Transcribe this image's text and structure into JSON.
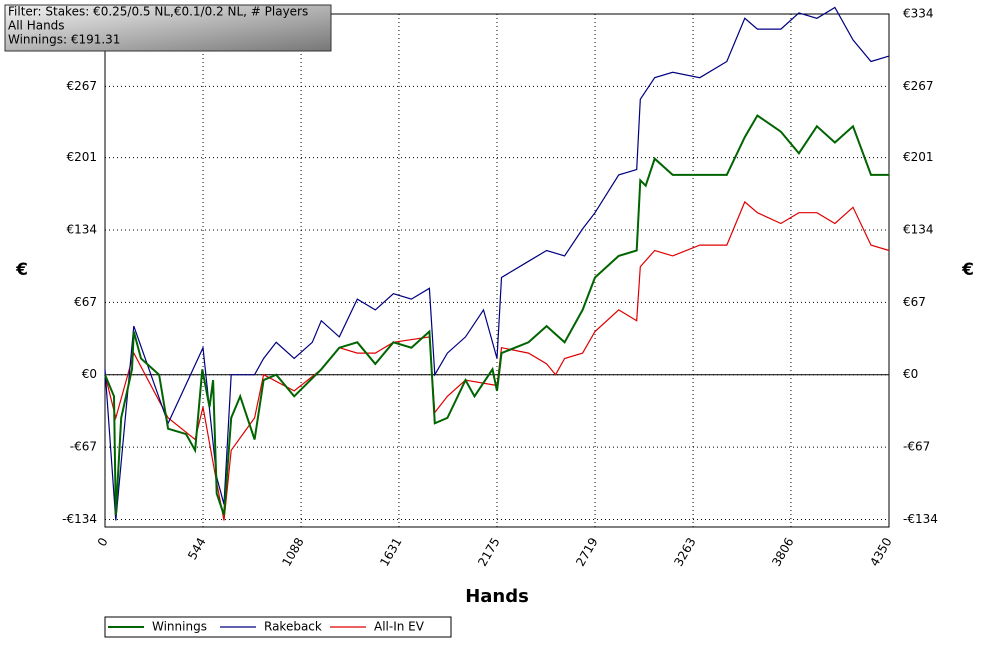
{
  "chart_data": {
    "type": "line",
    "filter_lines": [
      "Filter: Stakes: €0.25/0.5 NL,€0.1/0.2 NL, # Players",
      "All Hands",
      "Winnings: €191.31"
    ],
    "x_label": "Hands",
    "y_label": "€",
    "xlim": [
      0,
      4350
    ],
    "xticks": [
      0,
      544,
      1088,
      1631,
      2175,
      2719,
      3263,
      3806,
      4350
    ],
    "ylim": [
      -141,
      334
    ],
    "yticks": [
      {
        "value": -134,
        "label": "-€134"
      },
      {
        "value": -67,
        "label": "-€67"
      },
      {
        "value": 0,
        "label": "€0"
      },
      {
        "value": 67,
        "label": "€67"
      },
      {
        "value": 134,
        "label": "€134"
      },
      {
        "value": 201,
        "label": "€201"
      },
      {
        "value": 267,
        "label": "€267"
      },
      {
        "value": 334,
        "label": "€334"
      }
    ],
    "grid": true,
    "legend": "bottom",
    "series": [
      {
        "name": "Winnings",
        "color": "#006400",
        "x": [
          0,
          50,
          60,
          90,
          150,
          160,
          200,
          300,
          350,
          450,
          500,
          540,
          580,
          600,
          620,
          660,
          700,
          750,
          830,
          880,
          950,
          1050,
          1200,
          1300,
          1400,
          1500,
          1600,
          1700,
          1800,
          1830,
          1900,
          2000,
          2050,
          2150,
          2175,
          2200,
          2350,
          2450,
          2550,
          2650,
          2719,
          2850,
          2950,
          2970,
          3000,
          3050,
          3150,
          3300,
          3450,
          3550,
          3620,
          3750,
          3850,
          3950,
          4050,
          4150,
          4250,
          4350
        ],
        "values": [
          0,
          -20,
          -130,
          -40,
          5,
          40,
          15,
          0,
          -50,
          -55,
          -70,
          5,
          -30,
          -5,
          -110,
          -130,
          -40,
          -20,
          -60,
          -5,
          0,
          -20,
          5,
          25,
          30,
          10,
          30,
          25,
          40,
          -45,
          -40,
          -5,
          -20,
          5,
          -15,
          20,
          30,
          45,
          30,
          60,
          90,
          110,
          115,
          180,
          175,
          200,
          185,
          185,
          185,
          220,
          240,
          225,
          205,
          230,
          215,
          230,
          185,
          185
        ]
      },
      {
        "name": "Rakeback",
        "color": "#000080",
        "x": [
          0,
          60,
          160,
          350,
          544,
          620,
          660,
          700,
          830,
          880,
          950,
          1050,
          1150,
          1200,
          1300,
          1400,
          1500,
          1600,
          1700,
          1800,
          1830,
          1900,
          2000,
          2100,
          2175,
          2200,
          2350,
          2450,
          2550,
          2650,
          2719,
          2850,
          2950,
          2970,
          3050,
          3150,
          3300,
          3450,
          3550,
          3620,
          3750,
          3850,
          3950,
          4050,
          4150,
          4250,
          4350
        ],
        "values": [
          5,
          -135,
          45,
          -45,
          25,
          -95,
          -120,
          0,
          0,
          15,
          30,
          15,
          30,
          50,
          35,
          70,
          60,
          75,
          70,
          80,
          0,
          20,
          35,
          60,
          15,
          90,
          105,
          115,
          110,
          135,
          150,
          185,
          190,
          255,
          275,
          280,
          275,
          290,
          330,
          320,
          320,
          335,
          330,
          340,
          310,
          290,
          295
        ]
      },
      {
        "name": "All-In EV",
        "color": "#e00000",
        "x": [
          0,
          60,
          160,
          350,
          500,
          544,
          620,
          660,
          700,
          830,
          880,
          1050,
          1200,
          1300,
          1400,
          1500,
          1600,
          1800,
          1830,
          1900,
          2000,
          2175,
          2200,
          2350,
          2450,
          2500,
          2550,
          2650,
          2719,
          2850,
          2950,
          2970,
          3050,
          3150,
          3300,
          3450,
          3550,
          3620,
          3750,
          3850,
          3950,
          4050,
          4150,
          4250,
          4350
        ],
        "values": [
          0,
          -40,
          20,
          -40,
          -60,
          -30,
          -100,
          -135,
          -70,
          -40,
          0,
          -15,
          5,
          25,
          20,
          20,
          30,
          35,
          -35,
          -20,
          -5,
          -10,
          25,
          20,
          10,
          0,
          15,
          20,
          40,
          60,
          50,
          100,
          115,
          110,
          120,
          120,
          160,
          150,
          140,
          150,
          150,
          140,
          155,
          120,
          115
        ]
      }
    ]
  }
}
